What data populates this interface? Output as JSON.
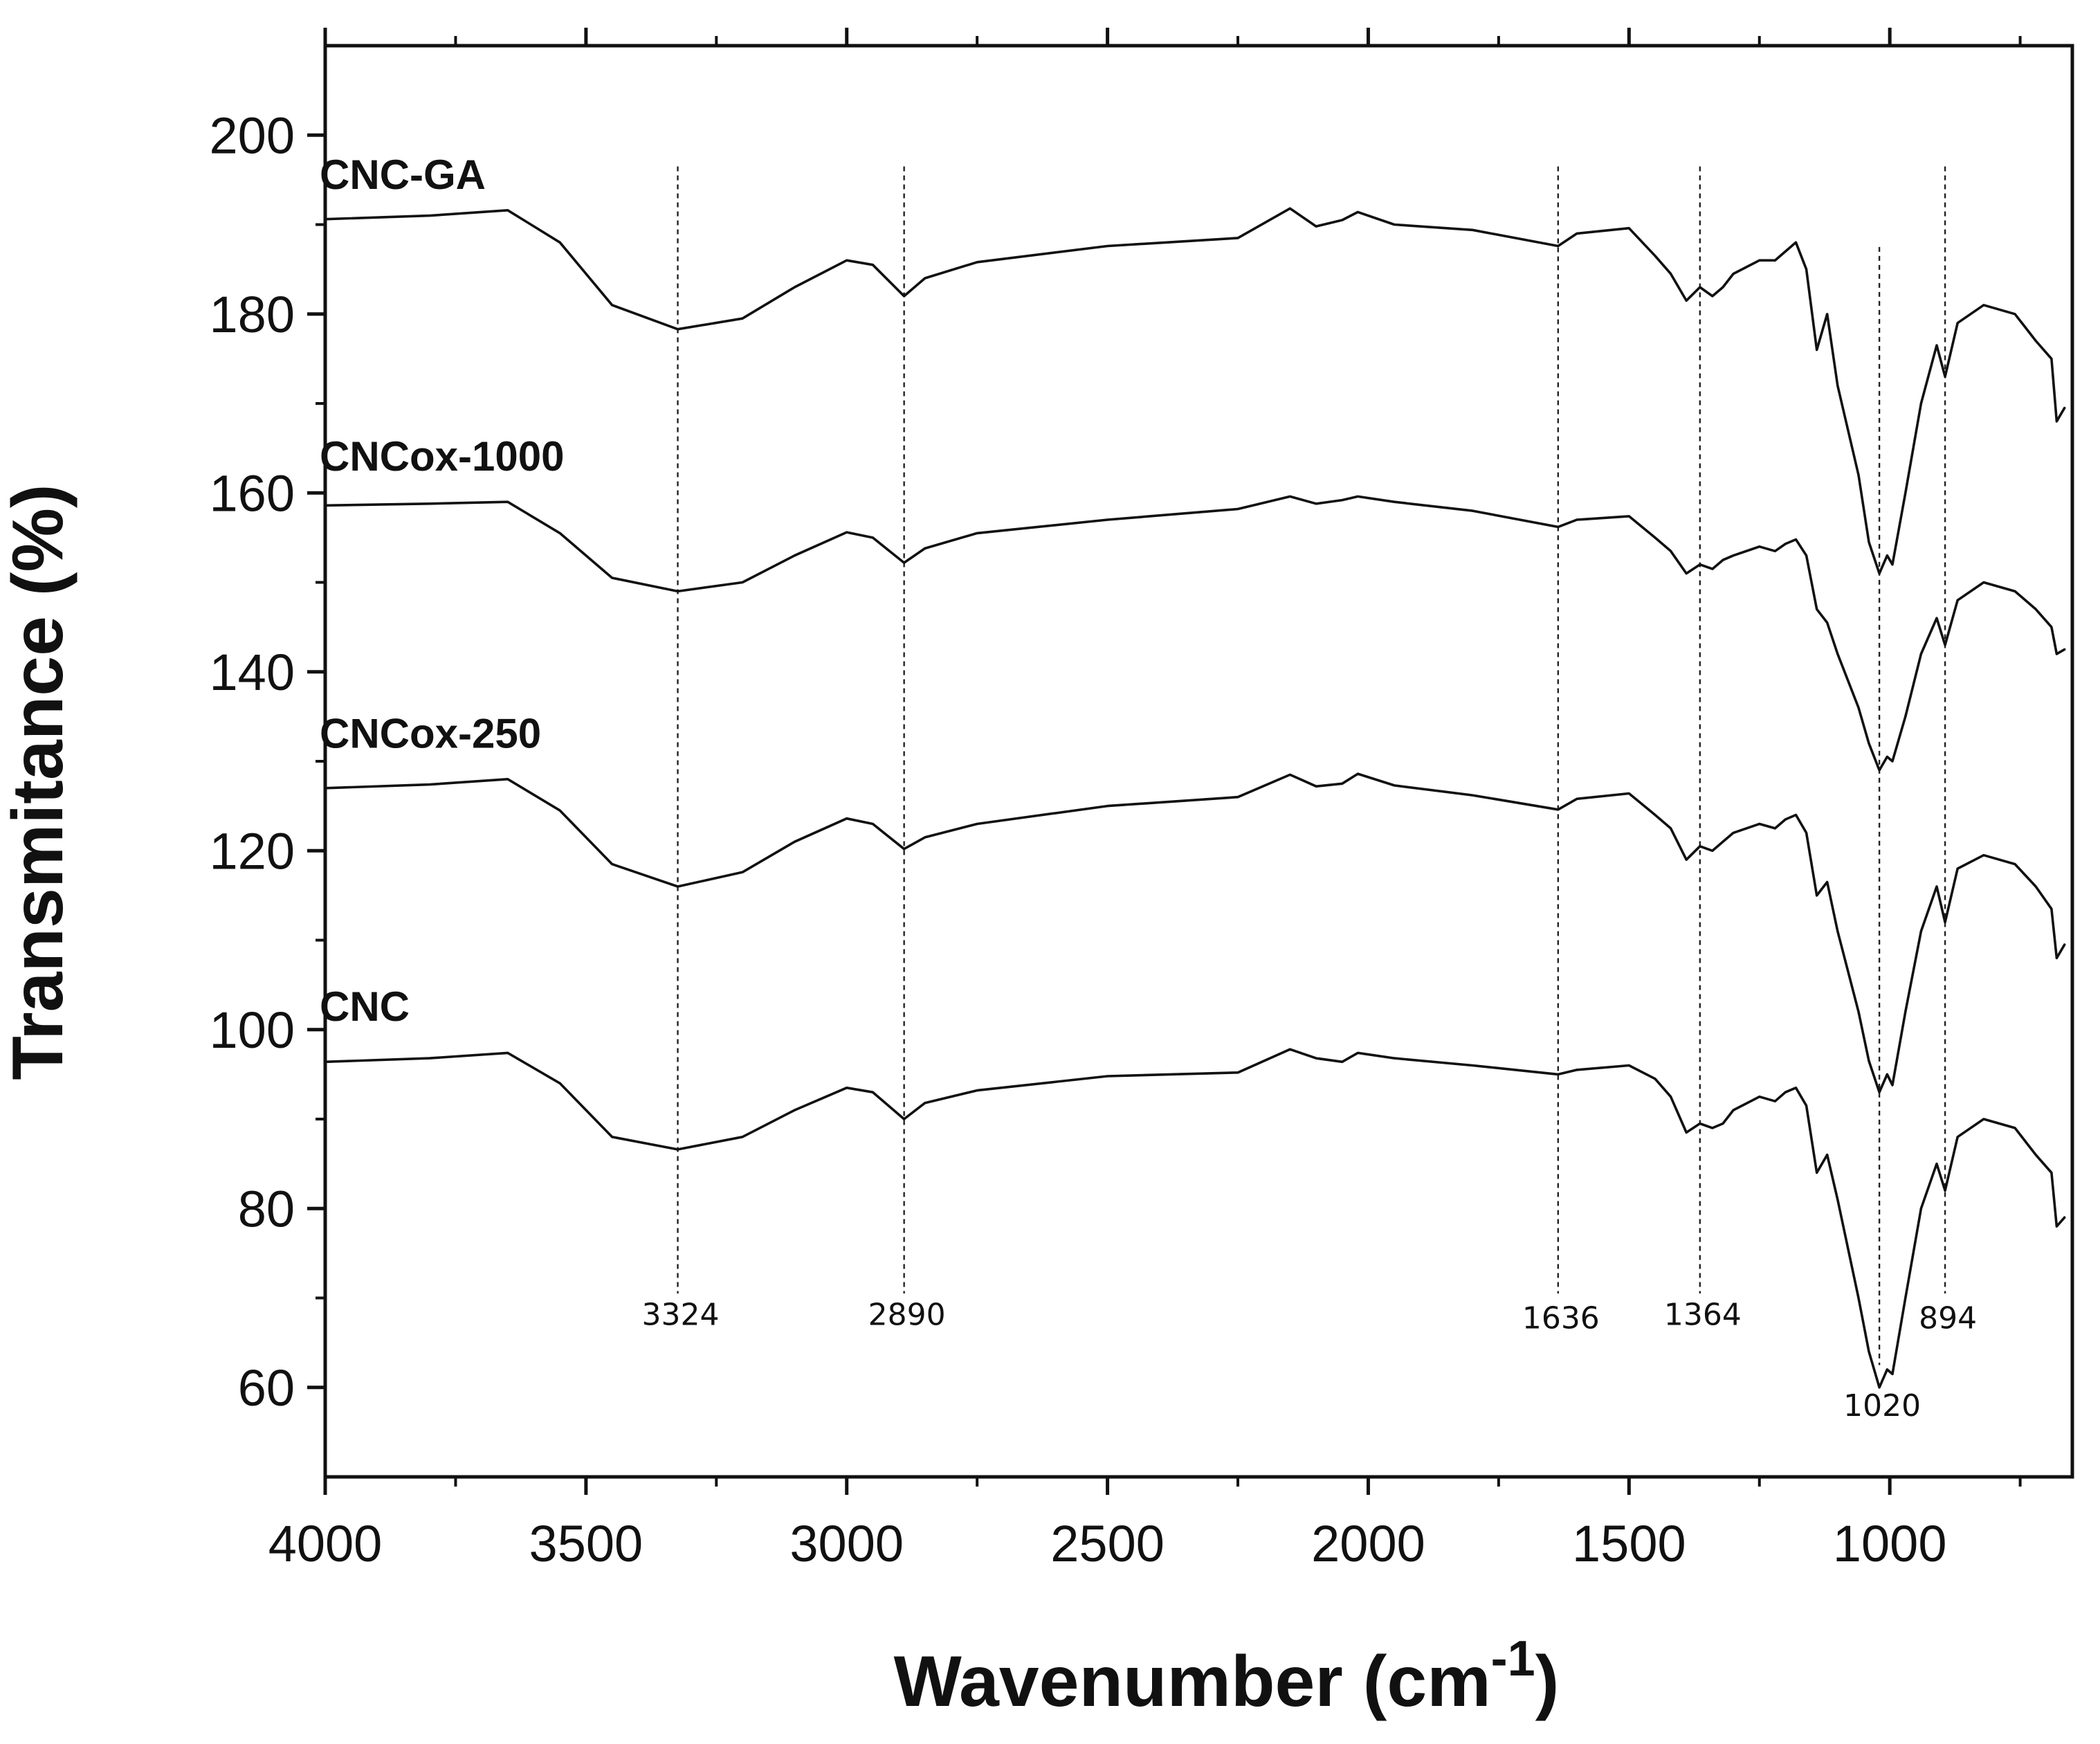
{
  "chart_data": {
    "type": "line",
    "title": "",
    "xlabel": "Wavenumber (cm",
    "xlabel_sup": "-1",
    "xlabel_tail": ")",
    "ylabel": "Transmitance (%)",
    "xlim": [
      4000,
      650
    ],
    "ylim": [
      50,
      210
    ],
    "x_ticks": [
      4000,
      3500,
      3000,
      2500,
      2000,
      1500,
      1000
    ],
    "x_tick_labels": [
      "4000",
      "3500",
      "3000",
      "2500",
      "2000",
      "1500",
      "1000"
    ],
    "y_ticks": [
      60,
      80,
      100,
      120,
      140,
      160,
      180,
      200
    ],
    "y_tick_labels": [
      "60",
      "80",
      "100",
      "120",
      "140",
      "160",
      "180",
      "200"
    ],
    "grid": false,
    "series": [
      {
        "name": "CNC",
        "label": "CNC",
        "points": [
          [
            4000,
            96.4
          ],
          [
            3800,
            96.8
          ],
          [
            3650,
            97.4
          ],
          [
            3550,
            94.0
          ],
          [
            3450,
            88.0
          ],
          [
            3324,
            86.6
          ],
          [
            3200,
            88.0
          ],
          [
            3100,
            91.0
          ],
          [
            3000,
            93.5
          ],
          [
            2950,
            93.0
          ],
          [
            2890,
            90.0
          ],
          [
            2850,
            91.8
          ],
          [
            2750,
            93.2
          ],
          [
            2500,
            94.8
          ],
          [
            2250,
            95.2
          ],
          [
            2150,
            97.8
          ],
          [
            2100,
            96.8
          ],
          [
            2050,
            96.4
          ],
          [
            2020,
            97.4
          ],
          [
            1950,
            96.8
          ],
          [
            1800,
            96.0
          ],
          [
            1636,
            95.0
          ],
          [
            1600,
            95.5
          ],
          [
            1500,
            96.0
          ],
          [
            1450,
            94.5
          ],
          [
            1420,
            92.5
          ],
          [
            1390,
            88.5
          ],
          [
            1364,
            89.5
          ],
          [
            1340,
            89.0
          ],
          [
            1320,
            89.5
          ],
          [
            1300,
            91.0
          ],
          [
            1250,
            92.5
          ],
          [
            1220,
            92.0
          ],
          [
            1200,
            93.0
          ],
          [
            1180,
            93.5
          ],
          [
            1160,
            91.5
          ],
          [
            1140,
            84.0
          ],
          [
            1120,
            86.0
          ],
          [
            1100,
            81.0
          ],
          [
            1060,
            70.0
          ],
          [
            1040,
            64.0
          ],
          [
            1020,
            60.0
          ],
          [
            1005,
            62.0
          ],
          [
            995,
            61.5
          ],
          [
            970,
            70.0
          ],
          [
            940,
            80.0
          ],
          [
            910,
            85.0
          ],
          [
            894,
            82.0
          ],
          [
            870,
            88.0
          ],
          [
            820,
            90.0
          ],
          [
            760,
            89.0
          ],
          [
            720,
            86.0
          ],
          [
            690,
            84.0
          ],
          [
            680,
            78.0
          ],
          [
            665,
            79.0
          ]
        ]
      },
      {
        "name": "CNCox-250",
        "label": "CNCox-250",
        "points": [
          [
            4000,
            127.0
          ],
          [
            3800,
            127.4
          ],
          [
            3650,
            128.0
          ],
          [
            3550,
            124.5
          ],
          [
            3450,
            118.5
          ],
          [
            3324,
            116.0
          ],
          [
            3200,
            117.6
          ],
          [
            3100,
            121.0
          ],
          [
            3000,
            123.6
          ],
          [
            2950,
            123.0
          ],
          [
            2890,
            120.2
          ],
          [
            2850,
            121.5
          ],
          [
            2750,
            123.0
          ],
          [
            2500,
            125.0
          ],
          [
            2250,
            126.0
          ],
          [
            2150,
            128.5
          ],
          [
            2100,
            127.2
          ],
          [
            2050,
            127.5
          ],
          [
            2020,
            128.6
          ],
          [
            1950,
            127.3
          ],
          [
            1800,
            126.2
          ],
          [
            1636,
            124.6
          ],
          [
            1600,
            125.8
          ],
          [
            1500,
            126.4
          ],
          [
            1450,
            124.0
          ],
          [
            1420,
            122.5
          ],
          [
            1390,
            119.0
          ],
          [
            1364,
            120.5
          ],
          [
            1340,
            120.0
          ],
          [
            1320,
            121.0
          ],
          [
            1300,
            122.0
          ],
          [
            1250,
            123.0
          ],
          [
            1220,
            122.5
          ],
          [
            1200,
            123.5
          ],
          [
            1180,
            124.0
          ],
          [
            1160,
            122.0
          ],
          [
            1140,
            115.0
          ],
          [
            1120,
            116.5
          ],
          [
            1100,
            111.0
          ],
          [
            1060,
            102.0
          ],
          [
            1040,
            96.5
          ],
          [
            1020,
            93.0
          ],
          [
            1005,
            95.0
          ],
          [
            995,
            93.8
          ],
          [
            970,
            102.0
          ],
          [
            940,
            111.0
          ],
          [
            910,
            116.0
          ],
          [
            894,
            112.0
          ],
          [
            870,
            118.0
          ],
          [
            820,
            119.5
          ],
          [
            760,
            118.5
          ],
          [
            720,
            116.0
          ],
          [
            690,
            113.5
          ],
          [
            680,
            108.0
          ],
          [
            665,
            109.5
          ]
        ]
      },
      {
        "name": "CNCox-1000",
        "label": "CNCox-1000",
        "points": [
          [
            4000,
            158.6
          ],
          [
            3800,
            158.8
          ],
          [
            3650,
            159.0
          ],
          [
            3550,
            155.5
          ],
          [
            3450,
            150.5
          ],
          [
            3324,
            149.0
          ],
          [
            3200,
            150.0
          ],
          [
            3100,
            153.0
          ],
          [
            3000,
            155.6
          ],
          [
            2950,
            155.0
          ],
          [
            2890,
            152.2
          ],
          [
            2850,
            153.8
          ],
          [
            2750,
            155.5
          ],
          [
            2500,
            157.0
          ],
          [
            2250,
            158.2
          ],
          [
            2150,
            159.6
          ],
          [
            2100,
            158.8
          ],
          [
            2050,
            159.2
          ],
          [
            2020,
            159.6
          ],
          [
            1950,
            159.0
          ],
          [
            1800,
            158.0
          ],
          [
            1636,
            156.2
          ],
          [
            1600,
            157.0
          ],
          [
            1500,
            157.4
          ],
          [
            1450,
            155.0
          ],
          [
            1420,
            153.5
          ],
          [
            1390,
            151.0
          ],
          [
            1364,
            152.0
          ],
          [
            1340,
            151.5
          ],
          [
            1320,
            152.5
          ],
          [
            1300,
            153.0
          ],
          [
            1250,
            154.0
          ],
          [
            1220,
            153.5
          ],
          [
            1200,
            154.3
          ],
          [
            1180,
            154.8
          ],
          [
            1160,
            153.0
          ],
          [
            1140,
            147.0
          ],
          [
            1120,
            145.5
          ],
          [
            1100,
            142.0
          ],
          [
            1060,
            136.0
          ],
          [
            1040,
            132.0
          ],
          [
            1020,
            129.0
          ],
          [
            1005,
            130.5
          ],
          [
            995,
            130.0
          ],
          [
            970,
            135.0
          ],
          [
            940,
            142.0
          ],
          [
            910,
            146.0
          ],
          [
            894,
            143.0
          ],
          [
            870,
            148.0
          ],
          [
            820,
            150.0
          ],
          [
            760,
            149.0
          ],
          [
            720,
            147.0
          ],
          [
            690,
            145.0
          ],
          [
            680,
            142.0
          ],
          [
            665,
            142.5
          ]
        ]
      },
      {
        "name": "CNC-GA",
        "label": "CNC-GA",
        "points": [
          [
            4000,
            190.6
          ],
          [
            3800,
            191.0
          ],
          [
            3650,
            191.6
          ],
          [
            3550,
            188.0
          ],
          [
            3450,
            181.0
          ],
          [
            3324,
            178.3
          ],
          [
            3200,
            179.5
          ],
          [
            3100,
            183.0
          ],
          [
            3000,
            186.0
          ],
          [
            2950,
            185.5
          ],
          [
            2890,
            182.0
          ],
          [
            2850,
            184.0
          ],
          [
            2750,
            185.8
          ],
          [
            2500,
            187.6
          ],
          [
            2250,
            188.5
          ],
          [
            2150,
            191.8
          ],
          [
            2100,
            189.8
          ],
          [
            2050,
            190.5
          ],
          [
            2020,
            191.4
          ],
          [
            1950,
            190.0
          ],
          [
            1800,
            189.4
          ],
          [
            1636,
            187.6
          ],
          [
            1600,
            189.0
          ],
          [
            1500,
            189.6
          ],
          [
            1450,
            186.5
          ],
          [
            1420,
            184.5
          ],
          [
            1390,
            181.5
          ],
          [
            1364,
            183.0
          ],
          [
            1340,
            182.0
          ],
          [
            1320,
            183.0
          ],
          [
            1300,
            184.5
          ],
          [
            1250,
            186.0
          ],
          [
            1220,
            186.0
          ],
          [
            1200,
            187.0
          ],
          [
            1180,
            188.0
          ],
          [
            1160,
            185.0
          ],
          [
            1140,
            176.0
          ],
          [
            1120,
            180.0
          ],
          [
            1100,
            172.0
          ],
          [
            1060,
            162.0
          ],
          [
            1040,
            154.5
          ],
          [
            1020,
            151.0
          ],
          [
            1005,
            153.0
          ],
          [
            995,
            152.0
          ],
          [
            970,
            160.0
          ],
          [
            940,
            170.0
          ],
          [
            910,
            176.5
          ],
          [
            894,
            173.0
          ],
          [
            870,
            179.0
          ],
          [
            820,
            181.0
          ],
          [
            760,
            180.0
          ],
          [
            720,
            177.0
          ],
          [
            690,
            175.0
          ],
          [
            680,
            168.0
          ],
          [
            665,
            169.5
          ]
        ]
      }
    ],
    "series_label_anchor": [
      {
        "name": "CNC-GA",
        "x": 4000,
        "y": 194.0
      },
      {
        "name": "CNCox-1000",
        "x": 4000,
        "y": 162.5
      },
      {
        "name": "CNCox-250",
        "x": 4000,
        "y": 131.5
      },
      {
        "name": "CNC",
        "x": 4000,
        "y": 101.0
      }
    ],
    "annotations": [
      {
        "x": 3324,
        "label": "3324"
      },
      {
        "x": 2890,
        "label": "2890"
      },
      {
        "x": 1636,
        "label": "1636"
      },
      {
        "x": 1364,
        "label": "1364"
      },
      {
        "x": 1020,
        "label": "1020"
      },
      {
        "x": 894,
        "label": "894"
      }
    ],
    "annotation_line_range": [
      {
        "x": 3324,
        "y_top": 196.5,
        "y_bottom": 70.5
      },
      {
        "x": 2890,
        "y_top": 196.5,
        "y_bottom": 70.5
      },
      {
        "x": 1636,
        "y_top": 196.5,
        "y_bottom": 70.5
      },
      {
        "x": 1364,
        "y_top": 196.5,
        "y_bottom": 70.5
      },
      {
        "x": 1020,
        "y_top": 187.5,
        "y_bottom": 62.5
      },
      {
        "x": 894,
        "y_top": 196.5,
        "y_bottom": 70.5
      }
    ]
  }
}
